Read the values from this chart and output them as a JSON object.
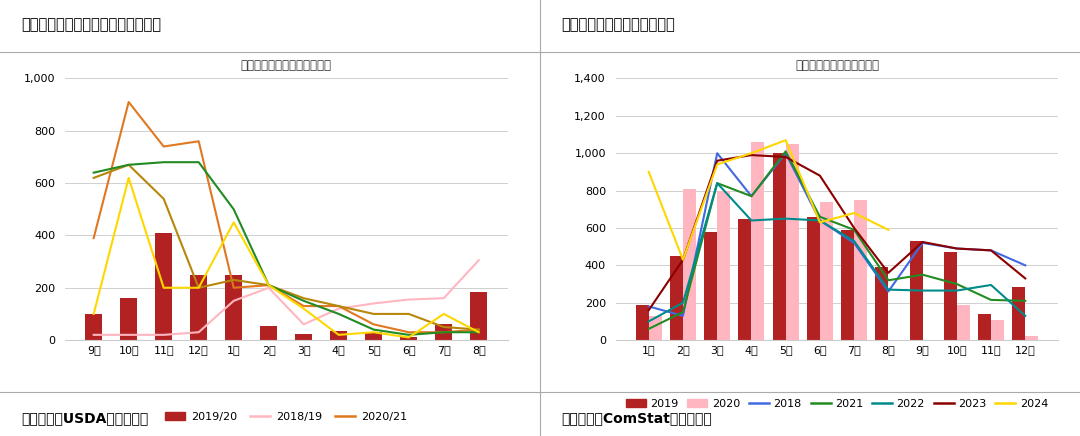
{
  "chart1": {
    "title_main": "图：中美贸易摩擦抑制美豆对华出口",
    "title_sub": "美豆对华出口装船量（万吨）",
    "xlabel_bottom": "数据来源：USDA，国富期货",
    "categories": [
      "9月",
      "10月",
      "11月",
      "12月",
      "1月",
      "2月",
      "3月",
      "4月",
      "5月",
      "6月",
      "7月",
      "8月"
    ],
    "bar_data": {
      "2019/20": [
        100,
        160,
        410,
        250,
        250,
        55,
        25,
        35,
        30,
        10,
        60,
        185
      ]
    },
    "line_data": {
      "2018/19": [
        20,
        20,
        20,
        30,
        150,
        200,
        60,
        120,
        140,
        155,
        160,
        305
      ],
      "2020/21": [
        390,
        910,
        740,
        760,
        200,
        210,
        130,
        130,
        60,
        30,
        30,
        40
      ],
      "2021/22": [
        620,
        670,
        540,
        200,
        230,
        210,
        160,
        130,
        100,
        100,
        50,
        40
      ],
      "2022/23": [
        640,
        670,
        680,
        680,
        500,
        210,
        150,
        100,
        40,
        20,
        30,
        30
      ],
      "2023/24": [
        100,
        620,
        200,
        200,
        450,
        210,
        120,
        20,
        30,
        10,
        100,
        30
      ]
    },
    "bar_color": "#b22222",
    "line_colors": {
      "2018/19": "#ffb6c1",
      "2020/21": "#e07820",
      "2021/22": "#b8860b",
      "2022/23": "#228b22",
      "2023/24": "#ffd700"
    },
    "ylim": [
      0,
      1000
    ],
    "yticks": [
      0,
      200,
      400,
      600,
      800,
      1000
    ]
  },
  "chart2": {
    "title_main": "图：巴西大豆对华出口受提振",
    "title_sub": "巴西大豆对华出口（万吨）",
    "xlabel_bottom": "数据来源：ComStat，国富期货",
    "categories": [
      "1月",
      "2月",
      "3月",
      "4月",
      "5月",
      "6月",
      "7月",
      "8月",
      "9月",
      "10月",
      "11月",
      "12月"
    ],
    "bar_data": {
      "2019": [
        190,
        450,
        580,
        650,
        1000,
        660,
        590,
        390,
        530,
        470,
        140,
        285
      ],
      "2020": [
        130,
        810,
        800,
        1060,
        1050,
        740,
        750,
        0,
        0,
        190,
        110,
        20
      ]
    },
    "line_data": {
      "2018": [
        180,
        130,
        1000,
        770,
        1000,
        640,
        520,
        260,
        520,
        490,
        480,
        400
      ],
      "2021": [
        60,
        150,
        840,
        770,
        1010,
        660,
        590,
        320,
        350,
        300,
        215,
        210
      ],
      "2022": [
        100,
        200,
        840,
        640,
        650,
        640,
        530,
        270,
        265,
        265,
        295,
        130
      ],
      "2023": [
        160,
        430,
        960,
        990,
        980,
        880,
        600,
        360,
        525,
        490,
        480,
        330
      ],
      "2024": [
        900,
        430,
        940,
        1000,
        1070,
        630,
        680,
        590,
        0,
        0,
        0,
        0
      ]
    },
    "bar_colors": {
      "2019": "#b22222",
      "2020": "#ffb6c1"
    },
    "line_colors": {
      "2018": "#4169e1",
      "2021": "#228b22",
      "2022": "#008b8b",
      "2023": "#8b0000",
      "2024": "#ffd700"
    },
    "ylim": [
      0,
      1400
    ],
    "yticks": [
      0,
      200,
      400,
      600,
      800,
      1000,
      1200,
      1400
    ]
  }
}
